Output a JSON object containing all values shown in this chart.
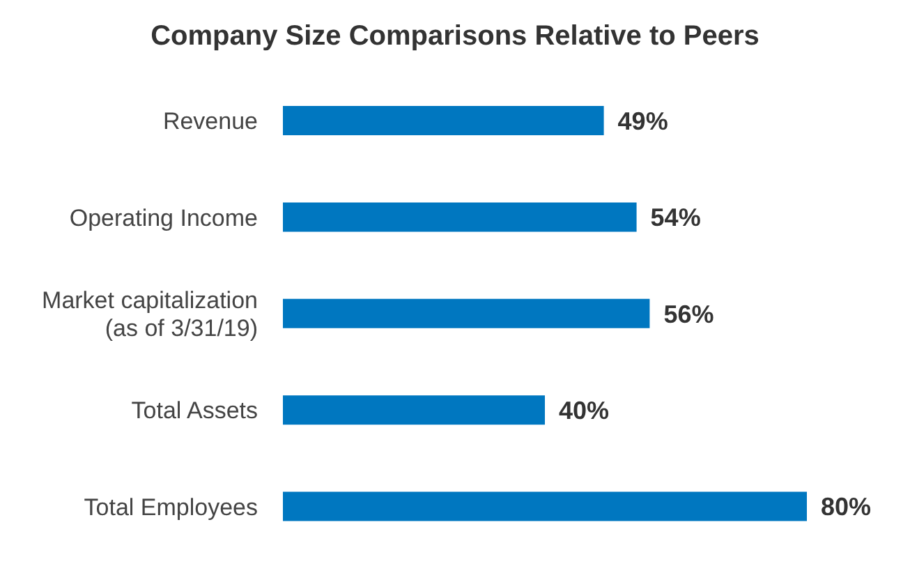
{
  "chart_data": {
    "type": "bar",
    "orientation": "horizontal",
    "title": "Company Size Comparisons Relative to Peers",
    "categories": [
      "Revenue",
      "Operating Income",
      "Market capitalization\n(as of 3/31/19)",
      "Total Assets",
      "Total Employees"
    ],
    "values": [
      49,
      54,
      56,
      40,
      80
    ],
    "color": "#0077c0",
    "value_labels": [
      "49%",
      "54%",
      "56%",
      "40%",
      "80%"
    ]
  }
}
